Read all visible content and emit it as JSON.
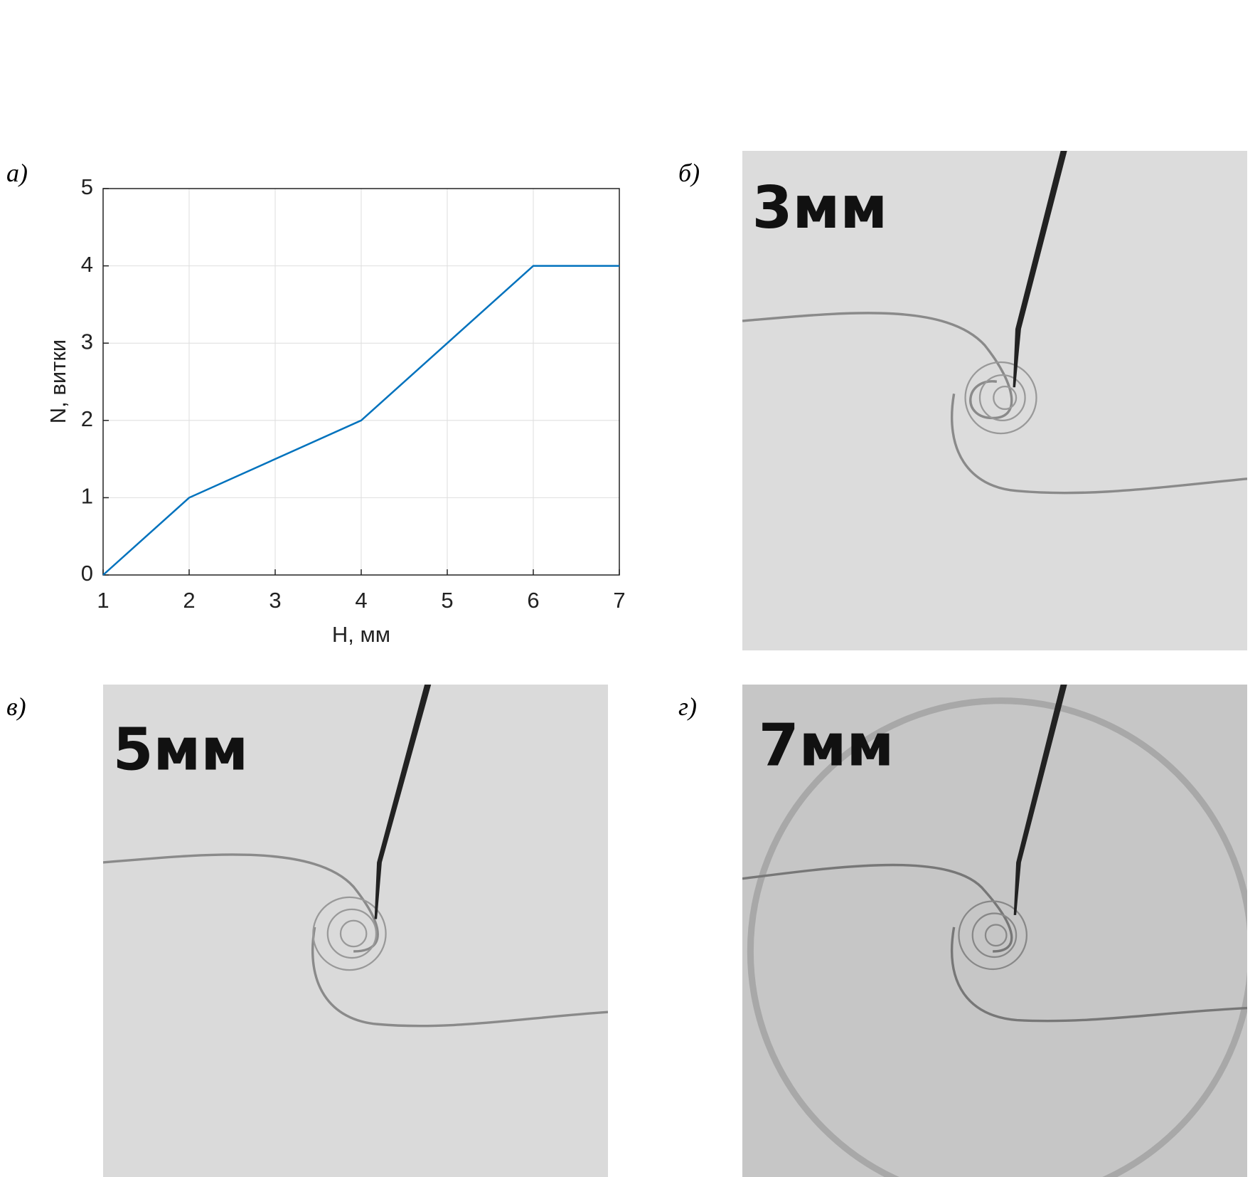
{
  "chart_data": {
    "type": "line",
    "xlabel": "H, мм",
    "ylabel": "N, витки",
    "x": [
      1,
      2,
      4,
      6,
      7
    ],
    "values": [
      0,
      1,
      2,
      4,
      4
    ],
    "color": "#0072bd",
    "xlim": [
      1,
      7
    ],
    "xticks": [
      1,
      2,
      3,
      4,
      5,
      6,
      7
    ],
    "ylim": [
      0,
      5
    ],
    "yticks": [
      0,
      1,
      2,
      3,
      4,
      5
    ],
    "grid": true
  },
  "panels": [
    {
      "letter": "а)"
    },
    {
      "letter": "б)",
      "photo_label": "3мм"
    },
    {
      "letter": "в)",
      "photo_label": "5мм"
    },
    {
      "letter": "г)",
      "photo_label": "7мм"
    }
  ]
}
